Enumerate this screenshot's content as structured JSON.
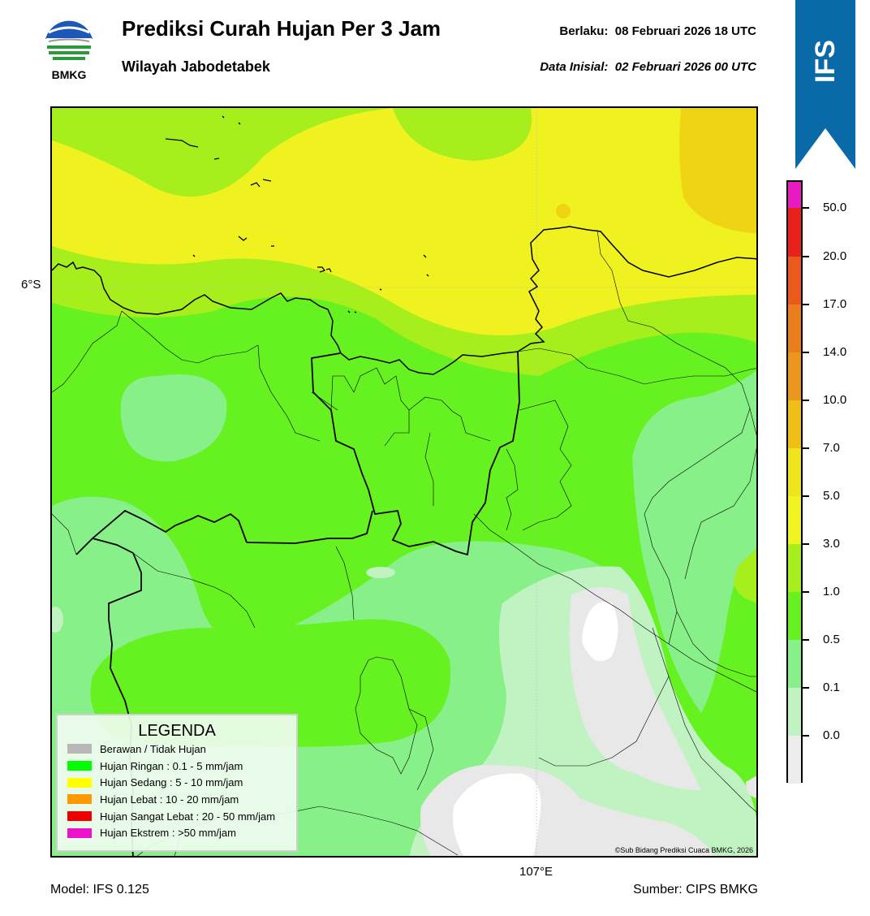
{
  "header": {
    "logo_text": "BMKG",
    "title": "Prediksi Curah Hujan Per 3 Jam",
    "subtitle": "Wilayah Jabodetabek",
    "valid_label": "Berlaku:",
    "valid_value": "08 Februari 2026 18 UTC",
    "init_label": "Data Inisial:",
    "init_value": "02 Februari 2026 00 UTC",
    "banner": "IFS"
  },
  "map": {
    "lat_label": "6°S",
    "lon_label": "107°E",
    "copyright": "©Sub Bidang Prediksi Cuaca BMKG, 2026",
    "colors": {
      "very_light": "#e8e8e8",
      "pale_green": "#c1f2c1",
      "light_green": "#88f088",
      "green": "#66f121",
      "yellow_green": "#a6ee1c",
      "yellow": "#f0f220",
      "gold": "#efd416"
    }
  },
  "legend": {
    "title": "LEGENDA",
    "items": [
      {
        "label": "Berawan / Tidak Hujan",
        "color": "#b8b8b8"
      },
      {
        "label": "Hujan Ringan : 0.1 - 5 mm/jam",
        "color": "#00ff00"
      },
      {
        "label": "Hujan Sedang : 5 - 10 mm/jam",
        "color": "#ffff00"
      },
      {
        "label": "Hujan Lebat : 10 - 20 mm/jam",
        "color": "#ff9900"
      },
      {
        "label": "Hujan Sangat Lebat : 20 - 50 mm/jam",
        "color": "#ee0000"
      },
      {
        "label": "Hujan Ekstrem : >50 mm/jam",
        "color": "#ee11cc"
      }
    ]
  },
  "colorbar": {
    "labels": [
      "50.0",
      "20.0",
      "17.0",
      "14.0",
      "10.0",
      "7.0",
      "5.0",
      "3.0",
      "1.0",
      "0.5",
      "0.1",
      "0.0"
    ],
    "colors": [
      "#e81cc0",
      "#e8221a",
      "#e95a1c",
      "#ea7e1c",
      "#eb961c",
      "#efbf18",
      "#f0e41a",
      "#f0f420",
      "#a6ee1c",
      "#66f121",
      "#88f088",
      "#c1f2c1",
      "#ededed"
    ]
  },
  "footer": {
    "model": "Model: IFS 0.125",
    "source": "Sumber: CIPS BMKG"
  }
}
